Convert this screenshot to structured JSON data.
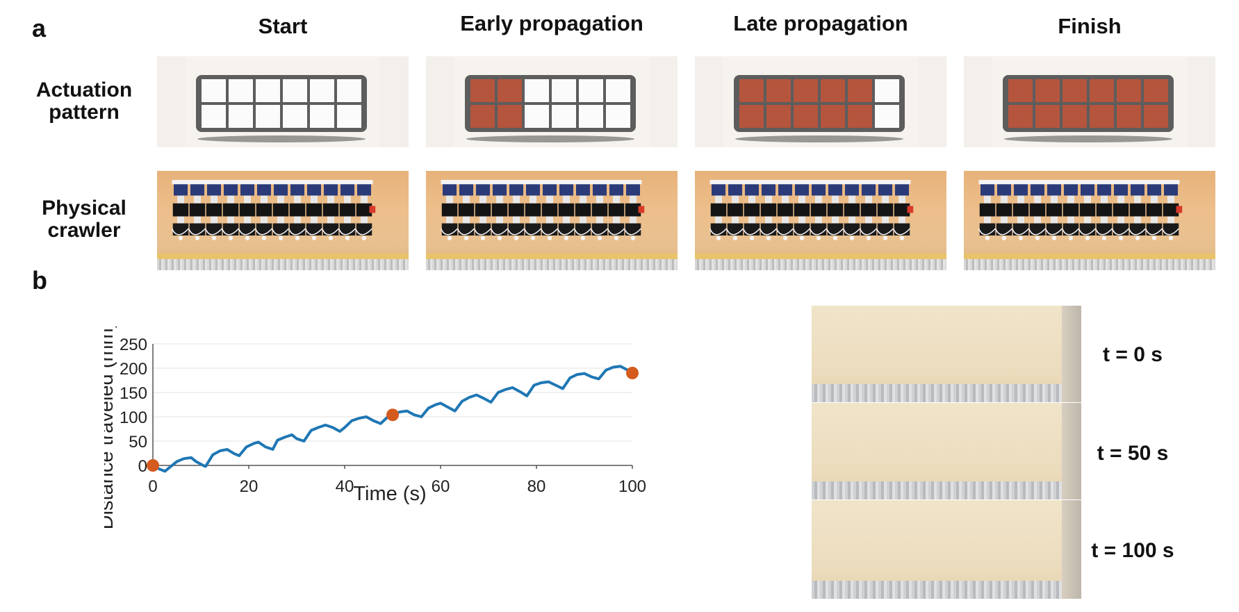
{
  "panels": {
    "a_letter": "a",
    "b_letter": "b"
  },
  "panel_a": {
    "columns": [
      "Start",
      "Early propagation",
      "Late propagation",
      "Finish"
    ],
    "rows": {
      "actuation": "Actuation\npattern",
      "physical": "Physical\ncrawler"
    },
    "actuated_cells": [
      0,
      2,
      5,
      6
    ],
    "cells_per_bar": 6,
    "colors": {
      "actuated": "#b5553d",
      "unactuated": "#fbfbfb",
      "frame": "#5d5d5d"
    }
  },
  "panel_b": {
    "snapshots": [
      "t = 0 s",
      "t = 50 s",
      "t = 100 s"
    ]
  },
  "chart_data": {
    "type": "line",
    "xlabel": "Time (s)",
    "ylabel": "Distance traveled (mm)",
    "xlim": [
      0,
      100
    ],
    "ylim": [
      0,
      250
    ],
    "xticks": [
      "0",
      "20",
      "40",
      "60",
      "80",
      "100"
    ],
    "yticks": [
      "0",
      "50",
      "100",
      "150",
      "200",
      "250"
    ],
    "grid": true,
    "line_color": "#1f77b4",
    "marker_color": "#d45a1e",
    "series": [
      {
        "x": [
          0,
          1,
          2.5,
          3.5,
          5,
          6.5,
          8,
          9,
          10.5,
          11,
          12.5,
          14,
          15.5,
          17,
          18,
          19.5,
          21,
          22,
          23.5,
          25,
          26,
          27.5,
          29,
          30,
          31.5,
          33,
          34.5,
          36,
          37.5,
          39,
          40,
          41.5,
          43,
          44.5,
          46,
          47.5,
          49,
          50,
          51.5,
          53,
          54.5,
          56,
          57.5,
          59,
          60,
          61.5,
          63,
          64.5,
          66,
          67.5,
          69,
          70.5,
          72,
          73.5,
          75,
          76.5,
          78,
          79.5,
          81,
          82.5,
          84,
          85.5,
          87,
          88.5,
          90,
          91.5,
          93,
          94.5,
          96,
          97.5,
          99,
          100
        ],
        "y": [
          0,
          -6,
          -12,
          -4,
          8,
          14,
          16,
          8,
          0,
          -2,
          22,
          30,
          33,
          24,
          20,
          38,
          45,
          48,
          38,
          33,
          52,
          58,
          63,
          55,
          50,
          72,
          78,
          83,
          78,
          70,
          78,
          92,
          97,
          100,
          92,
          86,
          100,
          104,
          110,
          112,
          104,
          100,
          118,
          125,
          128,
          120,
          112,
          132,
          140,
          145,
          138,
          130,
          150,
          156,
          160,
          152,
          143,
          165,
          170,
          172,
          165,
          158,
          180,
          187,
          189,
          182,
          178,
          196,
          202,
          204,
          196,
          190
        ]
      }
    ],
    "markers": [
      {
        "x": 0,
        "y": 0
      },
      {
        "x": 50,
        "y": 104
      },
      {
        "x": 100,
        "y": 190
      }
    ]
  }
}
